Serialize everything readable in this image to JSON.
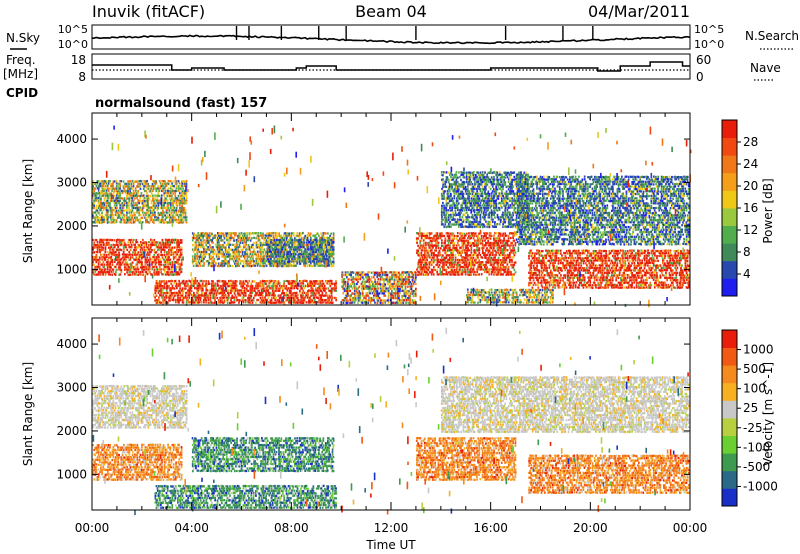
{
  "header": {
    "station": "Inuvik (fitACF)",
    "beam": "Beam 04",
    "date": "04/Mar/2011"
  },
  "top_panels": {
    "nsky": {
      "left_label": "N.Sky",
      "right_label": "N.Search",
      "left_ticks": [
        "10^5",
        "10^0"
      ],
      "right_ticks": [
        "10^5",
        "10^0"
      ]
    },
    "freq": {
      "left_label_1": "Freq.",
      "left_label_2": "[MHz]",
      "right_label": "Nave",
      "left_ticks": [
        "18",
        "8"
      ],
      "right_ticks": [
        "60",
        "0"
      ]
    },
    "cpid_label": "CPID",
    "program": "normalsound (fast) 157"
  },
  "chart_data": [
    {
      "type": "heatmap",
      "name": "power",
      "ylabel": "Slant Range [km]",
      "yticks": [
        "4000",
        "3000",
        "2000",
        "1000"
      ],
      "ylim": [
        180,
        4600
      ],
      "xlim_hours": [
        0,
        24
      ],
      "colorbar": {
        "label": "Power [dB]",
        "tick_labels": [
          "28",
          "24",
          "20",
          "16",
          "12",
          "8",
          "4"
        ],
        "colors": [
          "#1e1ef0",
          "#2848b0",
          "#3f8a58",
          "#52ad4c",
          "#9ac83e",
          "#f0c818",
          "#f59e1a",
          "#f07818",
          "#f04a12",
          "#e81e0a"
        ]
      },
      "echo_bands": [
        {
          "t0": 0.0,
          "t1": 3.6,
          "r0": 900,
          "r1": 1750,
          "level": "high"
        },
        {
          "t0": 0.0,
          "t1": 3.8,
          "r0": 2100,
          "r1": 3100,
          "level": "medium"
        },
        {
          "t0": 2.5,
          "t1": 9.8,
          "r0": 200,
          "r1": 800,
          "level": "high"
        },
        {
          "t0": 4.0,
          "t1": 9.7,
          "r0": 1100,
          "r1": 1900,
          "level": "medium"
        },
        {
          "t0": 7.0,
          "t1": 9.7,
          "r0": 1200,
          "r1": 1750,
          "level": "low"
        },
        {
          "t0": 10.0,
          "t1": 13.0,
          "r0": 250,
          "r1": 1000,
          "level": "mixed"
        },
        {
          "t0": 13.0,
          "t1": 17.0,
          "r0": 900,
          "r1": 1900,
          "level": "high"
        },
        {
          "t0": 14.0,
          "t1": 17.5,
          "r0": 2000,
          "r1": 3300,
          "level": "low"
        },
        {
          "t0": 17.0,
          "t1": 24.0,
          "r0": 1600,
          "r1": 3200,
          "level": "low"
        },
        {
          "t0": 17.5,
          "t1": 24.0,
          "r0": 600,
          "r1": 1500,
          "level": "high"
        },
        {
          "t0": 15.0,
          "t1": 18.5,
          "r0": 200,
          "r1": 600,
          "level": "medium"
        }
      ]
    },
    {
      "type": "heatmap",
      "name": "velocity",
      "ylabel": "Slant Range [km]",
      "yticks": [
        "4000",
        "3000",
        "2000",
        "1000"
      ],
      "ylim": [
        180,
        4600
      ],
      "xlim_hours": [
        0,
        24
      ],
      "xlabel": "Time UT",
      "xtick_labels": [
        "00:00",
        "04:00",
        "08:00",
        "12:00",
        "16:00",
        "20:00",
        "00:00"
      ],
      "colorbar": {
        "label": "Velocity [m s^-1]",
        "tick_labels": [
          "1000",
          "500",
          "100",
          "25",
          "-25",
          "-100",
          "-500",
          "-1000"
        ],
        "colors": [
          "#1a2ec8",
          "#2a6a88",
          "#3e9a4e",
          "#6ad032",
          "#b8d040",
          "#c8c8c8",
          "#f6b020",
          "#f58a1e",
          "#f05a14",
          "#e81e0a"
        ]
      },
      "echo_bands": [
        {
          "t0": 0.0,
          "t1": 3.6,
          "r0": 900,
          "r1": 1750,
          "level": "away"
        },
        {
          "t0": 0.0,
          "t1": 3.8,
          "r0": 2100,
          "r1": 3100,
          "level": "ground"
        },
        {
          "t0": 2.5,
          "t1": 9.8,
          "r0": 200,
          "r1": 800,
          "level": "toward"
        },
        {
          "t0": 4.0,
          "t1": 9.7,
          "r0": 1100,
          "r1": 1900,
          "level": "toward"
        },
        {
          "t0": 13.0,
          "t1": 17.0,
          "r0": 900,
          "r1": 1900,
          "level": "away"
        },
        {
          "t0": 14.0,
          "t1": 24.0,
          "r0": 2000,
          "r1": 3300,
          "level": "ground"
        },
        {
          "t0": 17.5,
          "t1": 24.0,
          "r0": 600,
          "r1": 1500,
          "level": "away"
        }
      ]
    }
  ]
}
